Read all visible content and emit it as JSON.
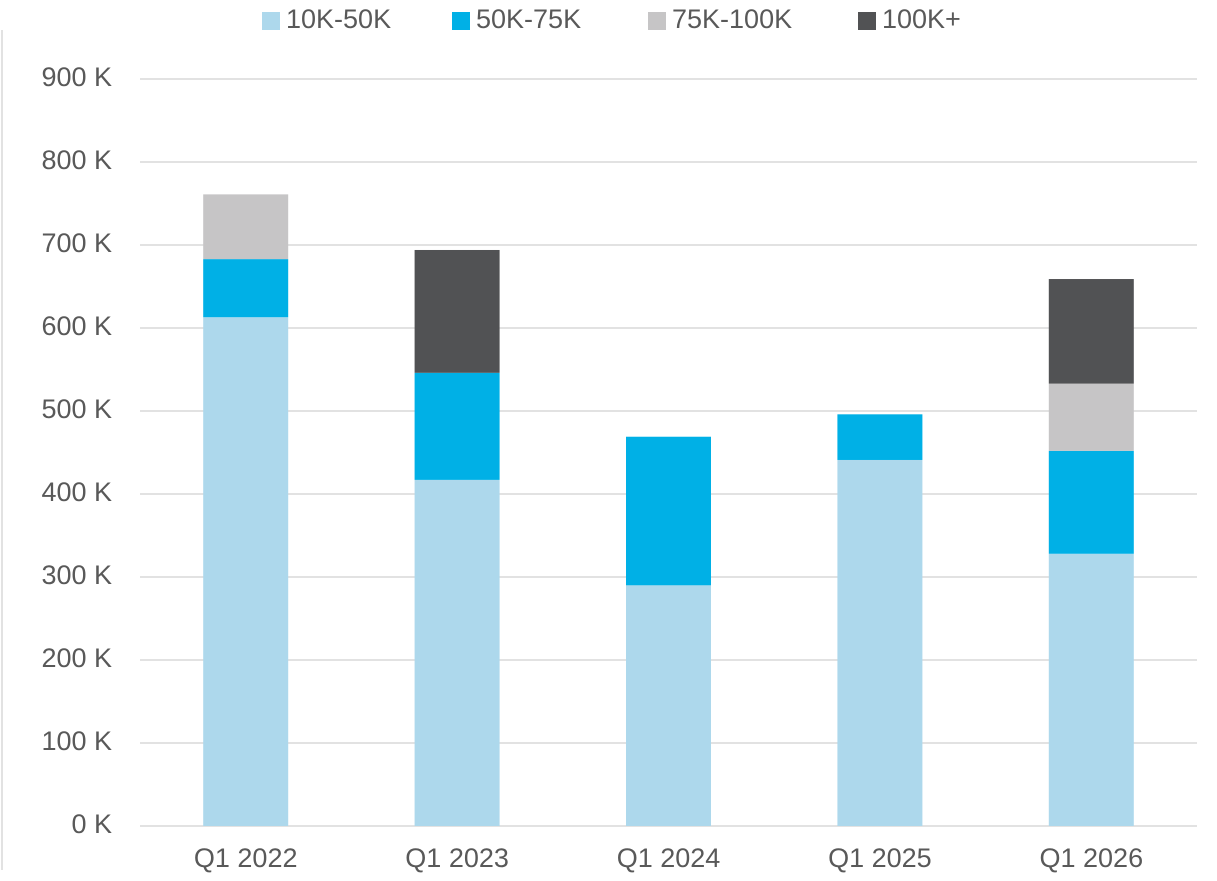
{
  "chart_data": {
    "type": "bar",
    "stacked": true,
    "categories": [
      "Q1 2022",
      "Q1 2023",
      "Q1 2024",
      "Q1 2025",
      "Q1 2026"
    ],
    "series": [
      {
        "name": "10K-50K",
        "color": "#add8ec",
        "values": [
          613,
          417,
          290,
          441,
          328
        ]
      },
      {
        "name": "50K-75K",
        "color": "#00b0e6",
        "values": [
          70,
          129,
          179,
          55,
          124
        ]
      },
      {
        "name": "75K-100K",
        "color": "#c6c5c6",
        "values": [
          78,
          0,
          0,
          0,
          81
        ]
      },
      {
        "name": "100K+",
        "color": "#515254",
        "values": [
          0,
          148,
          0,
          0,
          126
        ]
      }
    ],
    "ylim": [
      0,
      900
    ],
    "yticks": [
      {
        "value": 0,
        "label": "0 K"
      },
      {
        "value": 100,
        "label": "100 K"
      },
      {
        "value": 200,
        "label": "200 K"
      },
      {
        "value": 300,
        "label": "300 K"
      },
      {
        "value": 400,
        "label": "400 K"
      },
      {
        "value": 500,
        "label": "500 K"
      },
      {
        "value": 600,
        "label": "600 K"
      },
      {
        "value": 700,
        "label": "700 K"
      },
      {
        "value": 800,
        "label": "800 K"
      },
      {
        "value": 900,
        "label": "900 K"
      }
    ],
    "grid": true,
    "legend": "top"
  }
}
